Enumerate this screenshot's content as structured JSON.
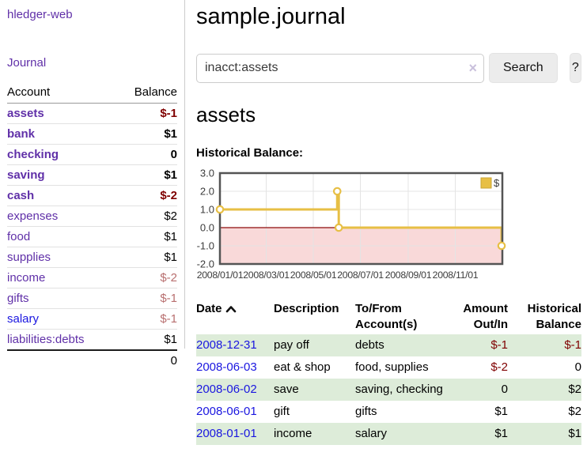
{
  "app": {
    "title": "hledger-web",
    "nav_journal": "Journal"
  },
  "sidebar": {
    "header": {
      "account": "Account",
      "balance": "Balance"
    },
    "accounts": [
      {
        "name": "assets",
        "balance": "$-1",
        "level": 1,
        "bold": true,
        "neg": "strong"
      },
      {
        "name": "bank",
        "balance": "$1",
        "level": 2,
        "bold": true,
        "neg": "none"
      },
      {
        "name": "checking",
        "balance": "0",
        "level": 3,
        "bold": true,
        "neg": "none"
      },
      {
        "name": "saving",
        "balance": "$1",
        "level": 3,
        "bold": true,
        "neg": "none"
      },
      {
        "name": "cash",
        "balance": "$-2",
        "level": 2,
        "bold": true,
        "neg": "strong"
      },
      {
        "name": "expenses",
        "balance": "$2",
        "level": 1,
        "bold": false,
        "neg": "none"
      },
      {
        "name": "food",
        "balance": "$1",
        "level": 2,
        "bold": false,
        "neg": "none"
      },
      {
        "name": "supplies",
        "balance": "$1",
        "level": 2,
        "bold": false,
        "neg": "none"
      },
      {
        "name": "income",
        "balance": "$-2",
        "level": 1,
        "bold": false,
        "neg": "soft"
      },
      {
        "name": "gifts",
        "balance": "$-1",
        "level": 2,
        "bold": false,
        "neg": "soft"
      },
      {
        "name": "salary",
        "balance": "$-1",
        "level": 2,
        "bold": false,
        "neg": "soft",
        "link_color": "blue"
      },
      {
        "name": "liabilities:debts",
        "balance": "$1",
        "level": 1,
        "bold": false,
        "neg": "none"
      }
    ],
    "total": "0"
  },
  "header": {
    "title": "sample.journal"
  },
  "search": {
    "value": "inacct:assets",
    "clear_icon": "×",
    "button_label": "Search",
    "help_label": "?"
  },
  "account_page": {
    "heading": "assets",
    "chart_label": "Historical Balance:"
  },
  "chart_data": {
    "type": "line",
    "title": "Historical Balance",
    "steps": true,
    "series": [
      {
        "name": "$",
        "color": "#e7bf45",
        "points": [
          [
            "2008-01-01",
            1
          ],
          [
            "2008-06-01",
            2
          ],
          [
            "2008-06-03",
            0
          ],
          [
            "2008-12-31",
            -1
          ]
        ]
      }
    ],
    "ylim": [
      -2,
      3
    ],
    "yticks": [
      3,
      2,
      1,
      0,
      -1,
      -2
    ],
    "xticks": [
      "2008/01/01",
      "2008/03/01",
      "2008/05/01",
      "2008/07/01",
      "2008/09/01",
      "2008/11/01"
    ],
    "xrange": [
      "2008-01-01",
      "2009-01-01"
    ],
    "grid": true,
    "legend_position": "top-right",
    "negative_region_fill": "#f9d9d9",
    "zero_line_color": "#8e0b0b",
    "grid_color": "#e4e4e4",
    "border_color": "#545454",
    "tick_text_color": "#3c3c3c"
  },
  "register": {
    "columns": [
      "Date",
      "Description",
      "To/From Account(s)",
      "Amount Out/In",
      "Historical Balance"
    ],
    "sort_icon": "chevron-up",
    "rows": [
      {
        "date": "2008-12-31",
        "description": "pay off",
        "accounts": "debts",
        "amount": "$-1",
        "amount_neg": true,
        "balance": "$-1",
        "balance_neg": true,
        "shaded": true
      },
      {
        "date": "2008-06-03",
        "description": "eat & shop",
        "accounts": "food, supplies",
        "amount": "$-2",
        "amount_neg": true,
        "balance": "0",
        "balance_neg": false,
        "shaded": false
      },
      {
        "date": "2008-06-02",
        "description": "save",
        "accounts": "saving, checking",
        "amount": "0",
        "amount_neg": false,
        "balance": "$2",
        "balance_neg": false,
        "shaded": true
      },
      {
        "date": "2008-06-01",
        "description": "gift",
        "accounts": "gifts",
        "amount": "$1",
        "amount_neg": false,
        "balance": "$2",
        "balance_neg": false,
        "shaded": false
      },
      {
        "date": "2008-01-01",
        "description": "income",
        "accounts": "salary",
        "amount": "$1",
        "amount_neg": false,
        "balance": "$1",
        "balance_neg": false,
        "shaded": true
      }
    ]
  }
}
